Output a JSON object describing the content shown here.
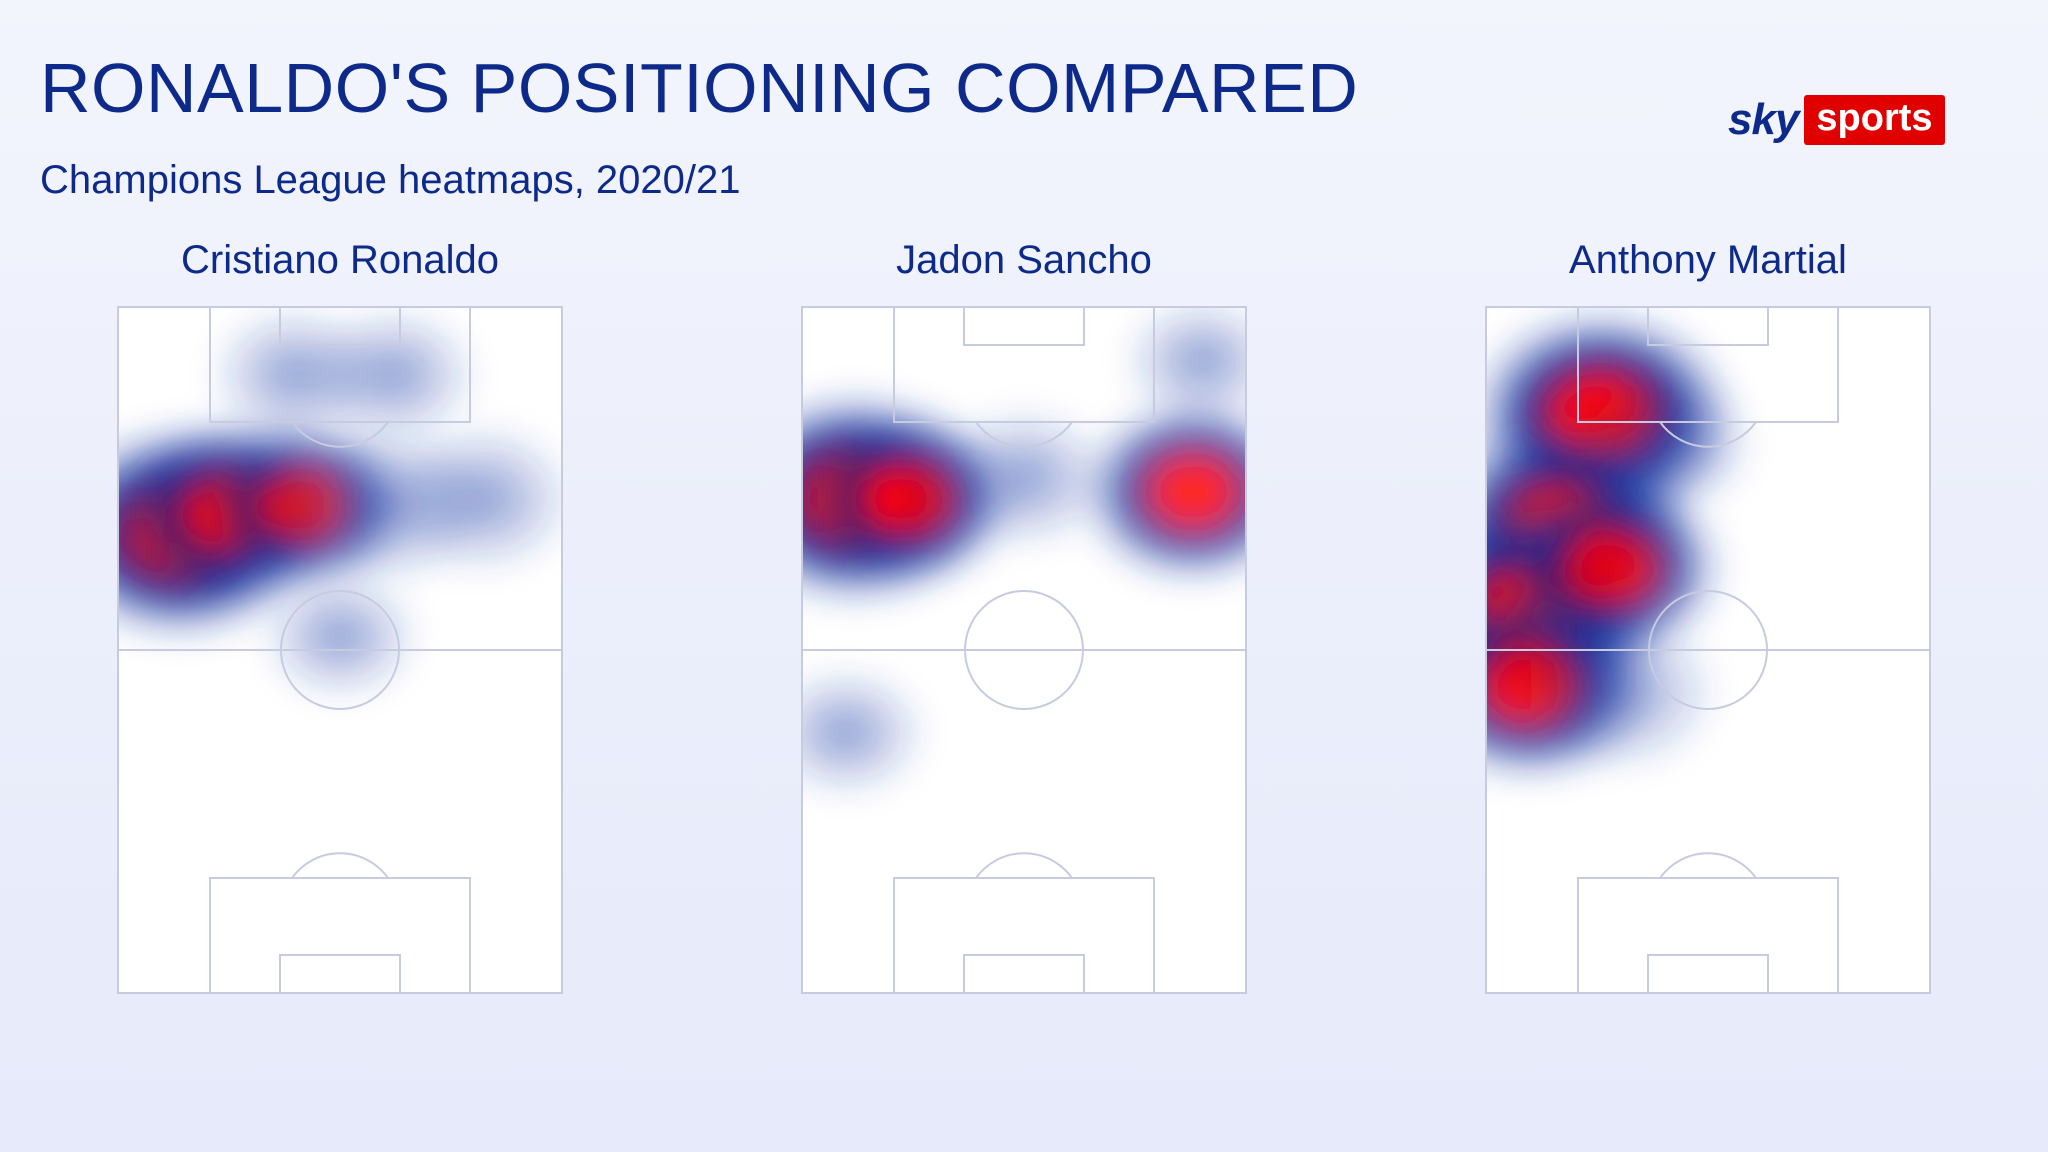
{
  "header": {
    "title": "RONALDO'S POSITIONING COMPARED",
    "subtitle": "Champions League heatmaps, 2020/21"
  },
  "brand": {
    "sky": "sky",
    "sports": "sports"
  },
  "colors": {
    "text": "#0d2a8a",
    "heat_low": "#1f3da8",
    "heat_mid": "#0b1f8a",
    "heat_high": "#ff0000",
    "brand_red": "#e10000"
  },
  "chart_data": [
    {
      "type": "heatmap",
      "title": "Cristiano Ronaldo",
      "pitch": "vertical, attacking upward",
      "series": [
        {
          "name": "Cristiano Ronaldo",
          "values": [
            {
              "x": 0.14,
              "y": 0.33,
              "intensity": 1.0
            },
            {
              "x": 0.26,
              "y": 0.3,
              "intensity": 0.75
            },
            {
              "x": 0.42,
              "y": 0.29,
              "intensity": 0.55
            },
            {
              "x": 0.6,
              "y": 0.29,
              "intensity": 0.45
            },
            {
              "x": 0.82,
              "y": 0.28,
              "intensity": 0.35
            },
            {
              "x": 0.4,
              "y": 0.1,
              "intensity": 0.22
            },
            {
              "x": 0.62,
              "y": 0.1,
              "intensity": 0.2
            },
            {
              "x": 0.5,
              "y": 0.48,
              "intensity": 0.12
            }
          ]
        }
      ]
    },
    {
      "type": "heatmap",
      "title": "Jadon Sancho",
      "pitch": "vertical, attacking upward",
      "series": [
        {
          "name": "Jadon Sancho",
          "values": [
            {
              "x": 0.12,
              "y": 0.28,
              "intensity": 1.0
            },
            {
              "x": 0.24,
              "y": 0.28,
              "intensity": 0.6
            },
            {
              "x": 0.88,
              "y": 0.27,
              "intensity": 0.7
            },
            {
              "x": 0.5,
              "y": 0.25,
              "intensity": 0.25
            },
            {
              "x": 0.1,
              "y": 0.62,
              "intensity": 0.15
            },
            {
              "x": 0.9,
              "y": 0.08,
              "intensity": 0.12
            }
          ]
        }
      ]
    },
    {
      "type": "heatmap",
      "title": "Anthony Martial",
      "pitch": "vertical, attacking upward",
      "series": [
        {
          "name": "Anthony Martial",
          "values": [
            {
              "x": 0.26,
              "y": 0.16,
              "intensity": 1.0
            },
            {
              "x": 0.17,
              "y": 0.32,
              "intensity": 0.95
            },
            {
              "x": 0.1,
              "y": 0.44,
              "intensity": 1.0
            },
            {
              "x": 0.1,
              "y": 0.55,
              "intensity": 0.8
            },
            {
              "x": 0.28,
              "y": 0.38,
              "intensity": 0.7
            },
            {
              "x": 0.3,
              "y": 0.56,
              "intensity": 0.45
            },
            {
              "x": 0.4,
              "y": 0.2,
              "intensity": 0.3
            }
          ]
        }
      ]
    }
  ]
}
